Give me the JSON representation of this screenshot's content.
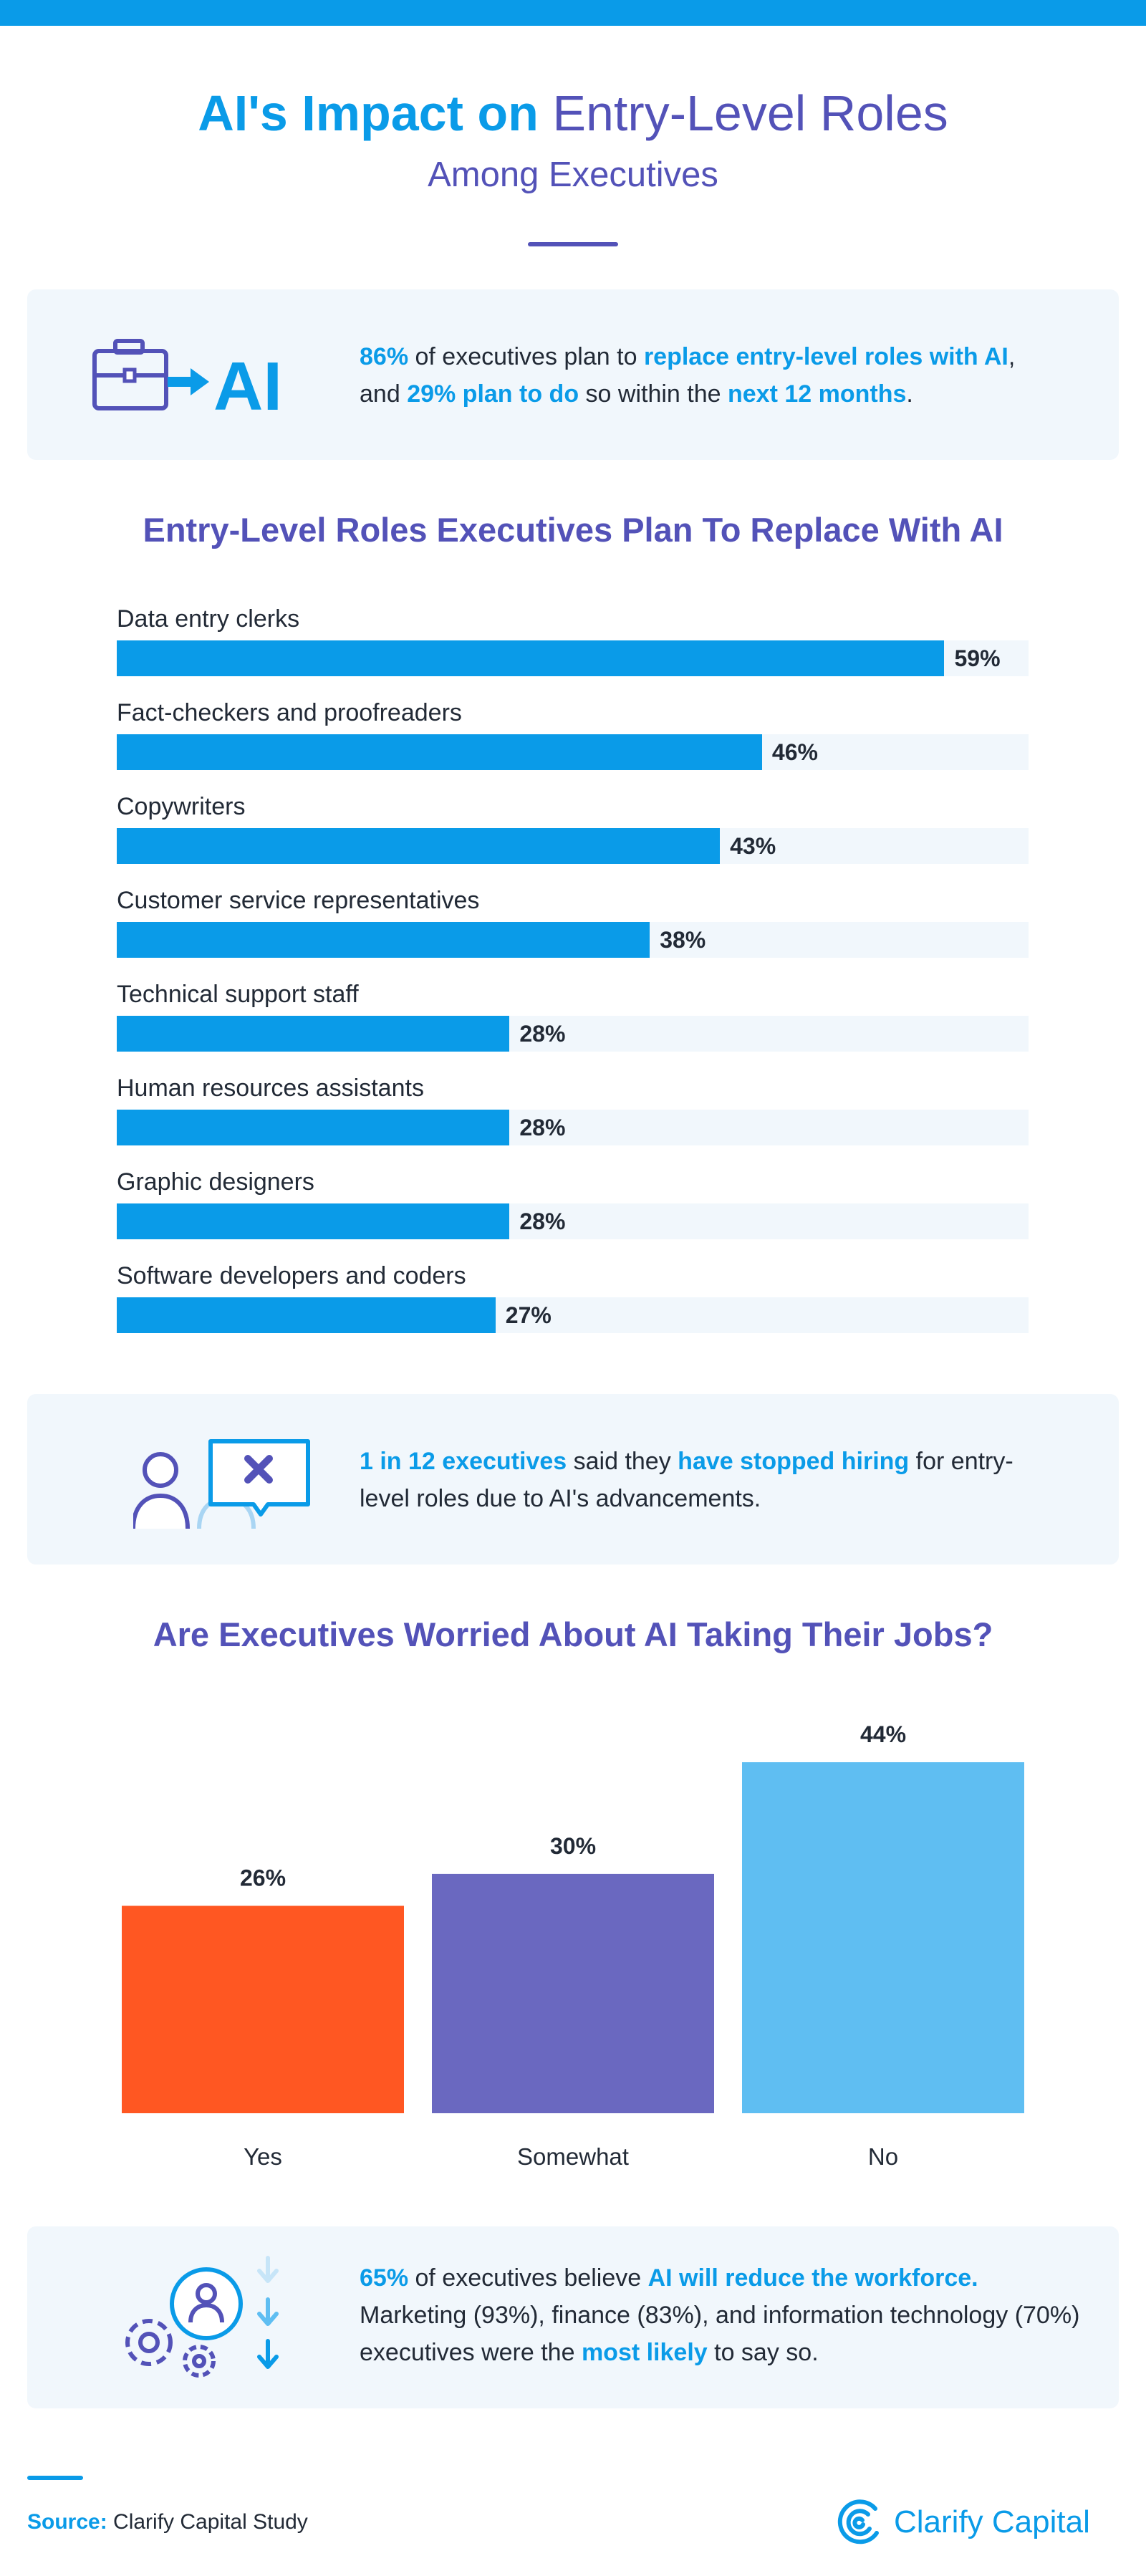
{
  "header": {
    "title_strong": "AI's Impact on",
    "title_light": "Entry-Level Roles",
    "subtitle": "Among Executives"
  },
  "colors": {
    "accent_blue": "#0a9be8",
    "accent_purple": "#5352b8",
    "panel_bg": "#f1f7fc",
    "yes": "#ff5722",
    "somewhat": "#6a68c0",
    "no": "#5fbef2"
  },
  "stat1": {
    "icon": "briefcase-to-ai-icon",
    "icon_text": "AI",
    "p1": "86%",
    "p2": " of executives plan to ",
    "p3": "replace entry-level roles with AI",
    "p4": ", and ",
    "p5": "29% plan to do",
    "p6": " so within the ",
    "p7": "next 12 months",
    "p8": "."
  },
  "stat2": {
    "icon": "users-hiring-stopped-icon",
    "p1": "1 in 12 executives",
    "p2": " said they ",
    "p3": "have stopped hiring",
    "p4": " for entry-level roles due to AI's advancements."
  },
  "stat3": {
    "icon": "workforce-reduction-icon",
    "p1": "65%",
    "p2": " of executives believe ",
    "p3": "AI will reduce the workforce.",
    "p4": " Marketing (93%), finance (83%), and information technology (70%) executives were the ",
    "p5": "most likely",
    "p6": " to say so."
  },
  "chart_data": [
    {
      "type": "bar",
      "orientation": "horizontal",
      "title": "Entry-Level Roles Executives Plan To Replace With AI",
      "categories": [
        "Data entry clerks",
        "Fact-checkers and proofreaders",
        "Copywriters",
        "Customer service representatives",
        "Technical support staff",
        "Human resources assistants",
        "Graphic designers",
        "Software developers and coders"
      ],
      "values": [
        59,
        46,
        43,
        38,
        28,
        28,
        28,
        27
      ],
      "value_labels": [
        "59%",
        "46%",
        "43%",
        "38%",
        "28%",
        "28%",
        "28%",
        "27%"
      ],
      "xlim": [
        0,
        65
      ],
      "grid": false,
      "legend": "none"
    },
    {
      "type": "bar",
      "orientation": "vertical",
      "title": "Are Executives Worried About AI Taking Their Jobs?",
      "categories": [
        "Yes",
        "Somewhat",
        "No"
      ],
      "values": [
        26,
        30,
        44
      ],
      "value_labels": [
        "26%",
        "30%",
        "44%"
      ],
      "ylim": [
        0,
        44
      ],
      "grid": false,
      "legend": "none"
    }
  ],
  "footer": {
    "source_label": "Source:",
    "source_text": " Clarify Capital Study",
    "brand_icon": "clarify-capital-logo-icon",
    "brand_name": "Clarify Capital"
  }
}
